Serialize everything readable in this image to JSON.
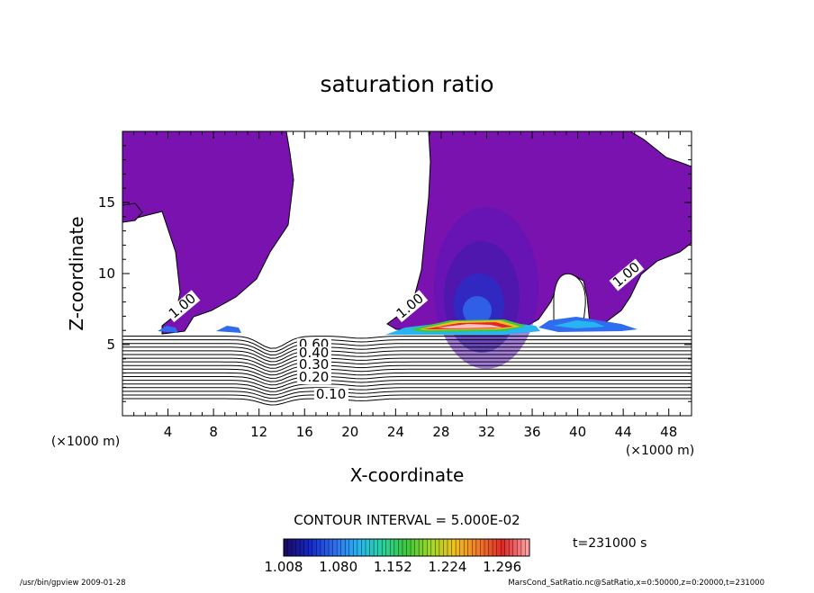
{
  "chart_data": {
    "type": "contour",
    "title": "saturation ratio",
    "xlabel": "X-coordinate",
    "ylabel": "Z-coordinate",
    "x_unit_left": "(×1000 m)",
    "x_unit_right": "(×1000 m)",
    "xlim": [
      0,
      50
    ],
    "ylim": [
      0,
      20
    ],
    "x_ticks": [
      4,
      8,
      12,
      16,
      20,
      24,
      28,
      32,
      36,
      40,
      44,
      48
    ],
    "y_ticks": [
      5,
      10,
      15
    ],
    "contour_interval_text": "CONTOUR INTERVAL = 5.000E-02",
    "time_text": "t=231000 s",
    "colorbar": {
      "min": 1.008,
      "max": 1.332,
      "tick_labels": [
        "1.008",
        "1.080",
        "1.152",
        "1.224",
        "1.296"
      ],
      "colors": [
        "#1b0a66",
        "#1428c8",
        "#2f6cf0",
        "#28b4f0",
        "#2ad2a0",
        "#3cc83c",
        "#a0d828",
        "#f0c020",
        "#f07828",
        "#e02828",
        "#ffa0a0"
      ]
    },
    "contour_labels": [
      {
        "x": 4.5,
        "z": 6.8,
        "text": "1.00"
      },
      {
        "x": 24.5,
        "z": 6.8,
        "text": "1.00"
      },
      {
        "x": 43.5,
        "z": 9.0,
        "text": "1.00"
      },
      {
        "x": 15.5,
        "z": 4.7,
        "text": "0.60"
      },
      {
        "x": 15.5,
        "z": 4.1,
        "text": "0.40"
      },
      {
        "x": 15.5,
        "z": 3.3,
        "text": "0.30"
      },
      {
        "x": 15.5,
        "z": 2.4,
        "text": "0.20"
      },
      {
        "x": 17.0,
        "z": 1.2,
        "text": "0.10"
      }
    ],
    "contour_levels_below_5km": [
      0.1,
      0.15,
      0.2,
      0.25,
      0.3,
      0.35,
      0.4,
      0.45,
      0.5,
      0.55,
      0.6,
      0.65,
      0.7,
      0.75,
      0.8,
      0.85,
      0.9,
      0.95
    ]
  },
  "footer": {
    "left": "/usr/bin/gpview  2009-01-28",
    "right": "MarsCond_SatRatio.nc@SatRatio,x=0:50000,z=0:20000,t=231000"
  }
}
